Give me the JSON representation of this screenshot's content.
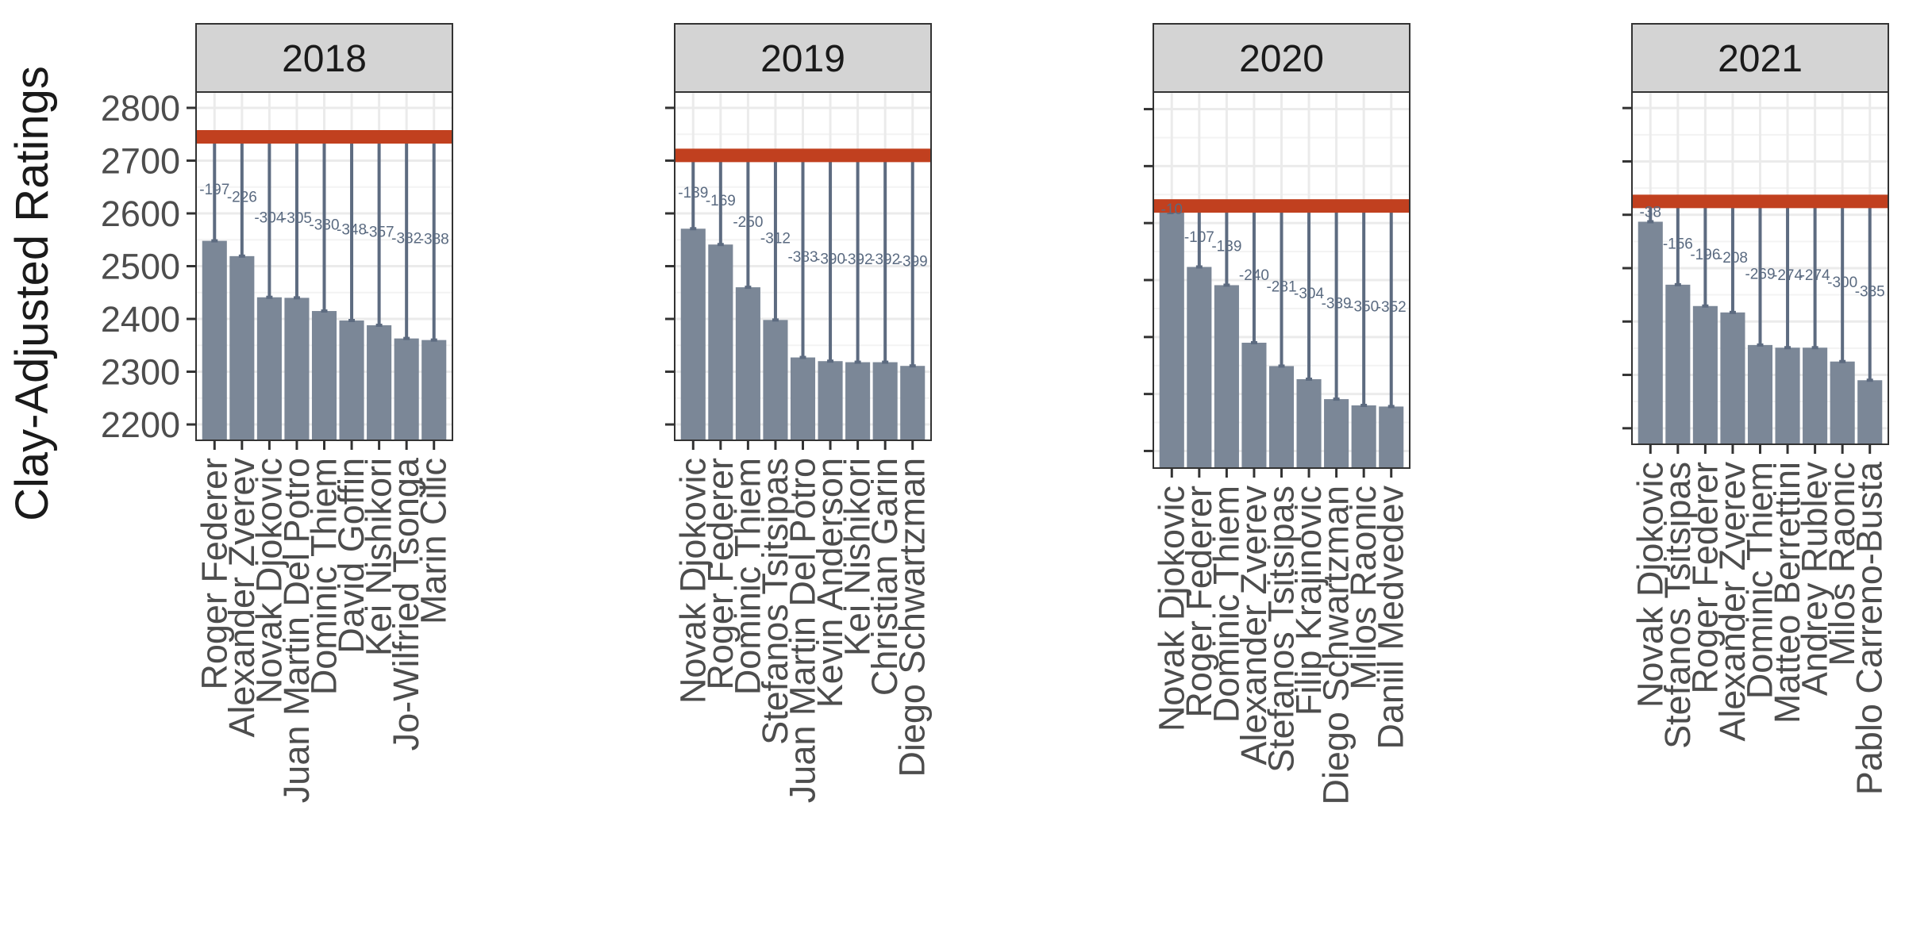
{
  "chart_data": {
    "type": "bar",
    "ylabel": "Clay-Adjusted Ratings",
    "y_ticks": [
      2200,
      2300,
      2400,
      2500,
      2600,
      2700,
      2800
    ],
    "colors": {
      "bar": "#7b8797",
      "reference": "#c1401f",
      "segment": "#5d6b80",
      "strip": "#d4d4d4",
      "grid": "#ebebeb"
    },
    "panels": [
      {
        "year": "2018",
        "reference": 2745,
        "ylim": [
          2170,
          2830
        ],
        "categories": [
          "Roger Federer",
          "Alexander Zverev",
          "Novak Djokovic",
          "Juan Martin Del Potro",
          "Dominic Thiem",
          "David Goffin",
          "Kei Nishikori",
          "Jo-Wilfried Tsonga",
          "Marin Cilic"
        ],
        "values": [
          2548,
          2519,
          2441,
          2440,
          2415,
          2397,
          2388,
          2363,
          2360
        ],
        "gap_labels": [
          "-197",
          "-226",
          "-304",
          "-305",
          "-330",
          "-348",
          "-357",
          "-382",
          "-388"
        ]
      },
      {
        "year": "2019",
        "reference": 2710,
        "ylim": [
          2170,
          2830
        ],
        "categories": [
          "Novak Djokovic",
          "Roger Federer",
          "Dominic Thiem",
          "Stefanos Tsitsipas",
          "Juan Martin Del Potro",
          "Kevin Anderson",
          "Kei Nishikori",
          "Christian Garin",
          "Diego Schwartzman"
        ],
        "values": [
          2571,
          2541,
          2460,
          2398,
          2327,
          2320,
          2318,
          2318,
          2311
        ],
        "gap_labels": [
          "-139",
          "-169",
          "-250",
          "-312",
          "-383",
          "-390",
          "-392",
          "-392",
          "-399"
        ]
      },
      {
        "year": "2020",
        "reference": 2630,
        "ylim": [
          2170,
          2830
        ],
        "categories": [
          "Novak Djokovic",
          "Roger Federer",
          "Dominic Thiem",
          "Alexander Zverev",
          "Stefanos Tsitsipas",
          "Filip Krajinovic",
          "Diego Schwartzman",
          "Milos Raonic",
          "Daniil Medvedev"
        ],
        "values": [
          2620,
          2523,
          2491,
          2390,
          2349,
          2326,
          2291,
          2280,
          2278
        ],
        "gap_labels": [
          "-10",
          "-107",
          "-139",
          "-240",
          "-281",
          "-304",
          "-339",
          "-350",
          "-352"
        ]
      },
      {
        "year": "2021",
        "reference": 2625,
        "ylim": [
          2170,
          2830
        ],
        "categories": [
          "Novak Djokovic",
          "Stefanos Tsitsipas",
          "Roger Federer",
          "Alexander Zverev",
          "Dominic Thiem",
          "Matteo Berrettini",
          "Andrey Rublev",
          "Milos Raonic",
          "Pablo Carreno-Busta"
        ],
        "values": [
          2587,
          2469,
          2429,
          2417,
          2356,
          2351,
          2351,
          2325,
          2290
        ],
        "gap_labels": [
          "-38",
          "-156",
          "-196",
          "-208",
          "-269",
          "-274",
          "-274",
          "-300",
          "-335"
        ]
      }
    ]
  }
}
